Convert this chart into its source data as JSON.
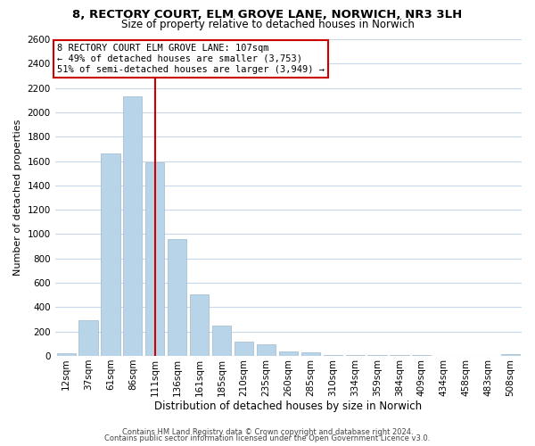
{
  "title": "8, RECTORY COURT, ELM GROVE LANE, NORWICH, NR3 3LH",
  "subtitle": "Size of property relative to detached houses in Norwich",
  "xlabel": "Distribution of detached houses by size in Norwich",
  "ylabel": "Number of detached properties",
  "bar_labels": [
    "12sqm",
    "37sqm",
    "61sqm",
    "86sqm",
    "111sqm",
    "136sqm",
    "161sqm",
    "185sqm",
    "210sqm",
    "235sqm",
    "260sqm",
    "285sqm",
    "310sqm",
    "334sqm",
    "359sqm",
    "384sqm",
    "409sqm",
    "434sqm",
    "458sqm",
    "483sqm",
    "508sqm"
  ],
  "bar_values": [
    20,
    295,
    1660,
    2130,
    1590,
    960,
    505,
    250,
    120,
    95,
    35,
    30,
    10,
    5,
    5,
    5,
    5,
    2,
    2,
    2,
    15
  ],
  "bar_color": "#b8d4e8",
  "vline_index": 4,
  "vline_color": "#cc0000",
  "ylim": [
    0,
    2600
  ],
  "yticks": [
    0,
    200,
    400,
    600,
    800,
    1000,
    1200,
    1400,
    1600,
    1800,
    2000,
    2200,
    2400,
    2600
  ],
  "annotation_title": "8 RECTORY COURT ELM GROVE LANE: 107sqm",
  "annotation_line1": "← 49% of detached houses are smaller (3,753)",
  "annotation_line2": "51% of semi-detached houses are larger (3,949) →",
  "annotation_box_color": "#ffffff",
  "annotation_box_edgecolor": "#cc0000",
  "footer1": "Contains HM Land Registry data © Crown copyright and database right 2024.",
  "footer2": "Contains public sector information licensed under the Open Government Licence v3.0.",
  "background_color": "#ffffff",
  "grid_color": "#c8d8e8",
  "title_fontsize": 9.5,
  "subtitle_fontsize": 8.5,
  "ylabel_fontsize": 8.0,
  "xlabel_fontsize": 8.5,
  "tick_fontsize": 7.5,
  "footer_fontsize": 6.0,
  "ann_fontsize": 7.5
}
